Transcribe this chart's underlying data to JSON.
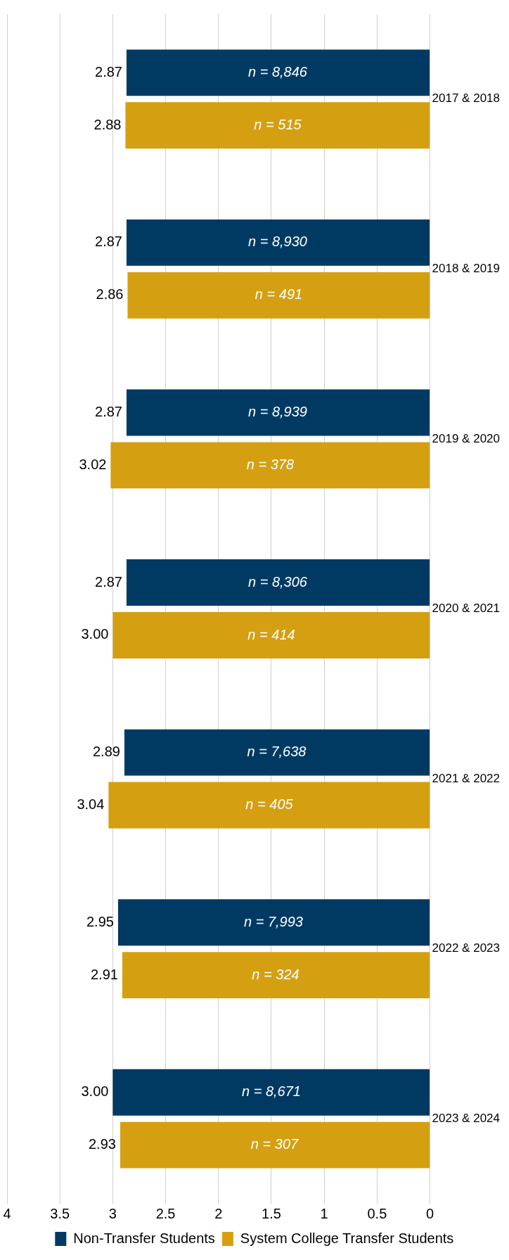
{
  "chart_data": {
    "type": "bar",
    "orientation": "horizontal",
    "categories": [
      "2017 & 2018",
      "2018 & 2019",
      "2019 & 2020",
      "2020 & 2021",
      "2021 & 2022",
      "2022 & 2023",
      "2023 & 2024"
    ],
    "series": [
      {
        "name": "Non-Transfer Students",
        "color": "#003a63",
        "values": [
          2.87,
          2.87,
          2.87,
          2.87,
          2.89,
          2.95,
          3.0
        ],
        "value_labels": [
          "2.87",
          "2.87",
          "2.87",
          "2.87",
          "2.89",
          "2.95",
          "3.00"
        ]
      },
      {
        "name": "System College Transfer Students",
        "color": "#d4a012",
        "values": [
          2.88,
          2.86,
          3.02,
          3.0,
          3.04,
          2.91,
          2.93
        ],
        "value_labels": [
          "2.88",
          "2.86",
          "3.02",
          "3.00",
          "3.04",
          "2.91",
          "2.93"
        ]
      }
    ],
    "xlim": [
      4,
      0
    ],
    "xticks": [
      0,
      0.5,
      1,
      1.5,
      2,
      2.5,
      3,
      3.5,
      4
    ],
    "grid": "x",
    "legend": "bottom",
    "annotations": [
      {
        "text": "n = 8,846",
        "x": 1.44,
        "y": "2017 & 2018"
      },
      {
        "text": "n = 515",
        "x": 1.44,
        "y": "2017 & 2018"
      },
      {
        "text": "n = 8,930",
        "x": 1.44,
        "y": "2018 & 2019"
      },
      {
        "text": "n = 491",
        "x": 1.43,
        "y": "2018 & 2019"
      },
      {
        "text": "n = 8,939",
        "x": 1.44,
        "y": "2019 & 2020"
      },
      {
        "text": "n = 378",
        "x": 1.51,
        "y": "2019 & 2020"
      },
      {
        "text": "n = 8,306",
        "x": 1.44,
        "y": "2020 & 2021"
      },
      {
        "text": "n = 414",
        "x": 1.5,
        "y": "2020 & 2021"
      },
      {
        "text": "n = 7,638",
        "x": 1.45,
        "y": "2021 & 2022"
      },
      {
        "text": "n = 405",
        "x": 1.52,
        "y": "2021 & 2022"
      },
      {
        "text": "n = 7,993",
        "x": 1.48,
        "y": "2022 & 2023"
      },
      {
        "text": "n = 324",
        "x": 1.46,
        "y": "2022 & 2023"
      },
      {
        "text": "n = 8,671",
        "x": 1.5,
        "y": "2023 & 2024"
      },
      {
        "text": "n = 307",
        "x": 1.47,
        "y": "2023 & 2024"
      }
    ]
  }
}
